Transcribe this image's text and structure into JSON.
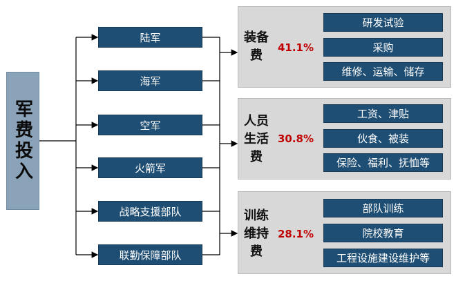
{
  "root": {
    "label": "军费投入"
  },
  "branches": [
    "陆军",
    "海军",
    "空军",
    "火箭军",
    "战略支援部队",
    "联勤保障部队"
  ],
  "categories": [
    {
      "name_lines": [
        "装备",
        "费"
      ],
      "percent": "41.1%",
      "items": [
        "研发试验",
        "采购",
        "维修、运输、储存"
      ]
    },
    {
      "name_lines": [
        "人员",
        "生活",
        "费"
      ],
      "percent": "30.8%",
      "items": [
        "工资、津贴",
        "伙食、被装",
        "保险、福利、抚恤等"
      ]
    },
    {
      "name_lines": [
        "训练",
        "维持",
        "费"
      ],
      "percent": "28.1%",
      "items": [
        "部队训练",
        "院校教育",
        "工程设施建设维护等"
      ]
    }
  ]
}
